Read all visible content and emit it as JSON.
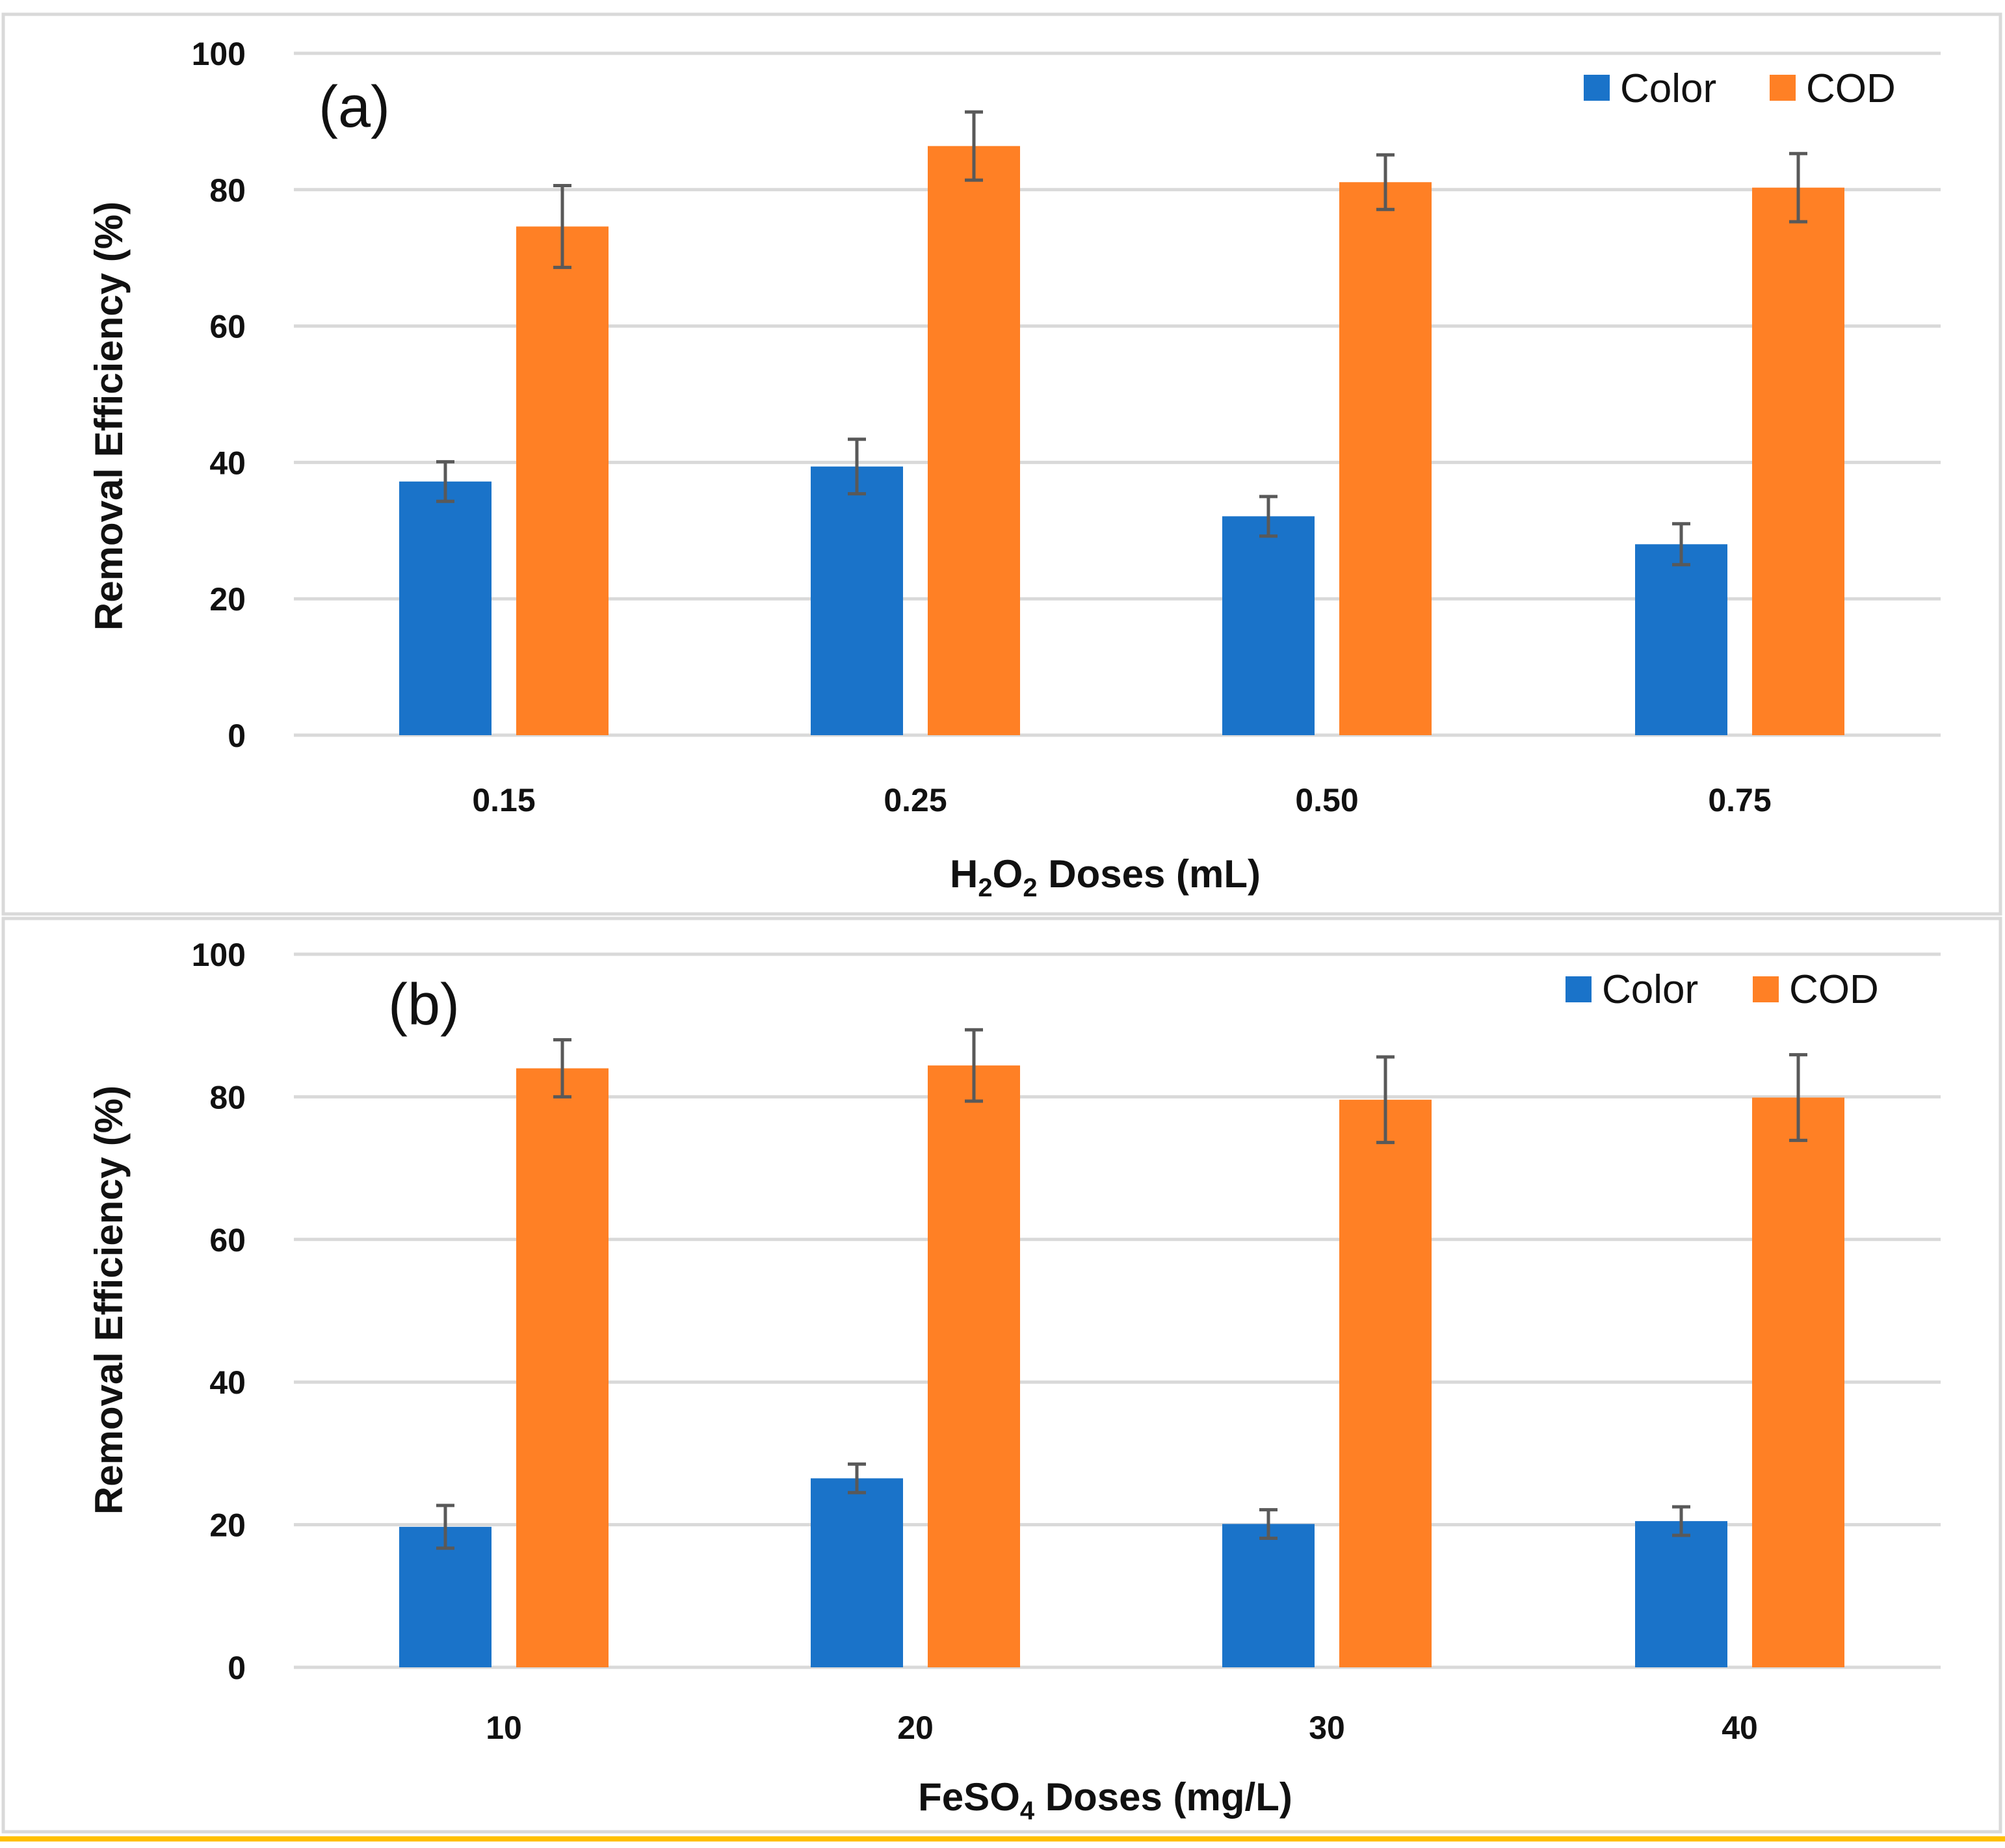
{
  "colors": {
    "color_series": "#1a73c9",
    "cod_series": "#ff8025",
    "gridline": "#d9d9d9",
    "errorbar": "#595959",
    "frame": "#d9d9d9",
    "bottom_rule": "#ffc000"
  },
  "chart_data": [
    {
      "type": "bar",
      "panel_label": "(a)",
      "title": "",
      "xlabel": {
        "prefix": "H",
        "sub1": "2",
        "mid": "O",
        "sub2": "2",
        "suffix": " Doses (mL)"
      },
      "ylabel": "Removal Efficiency (%)",
      "ylim": [
        0,
        100
      ],
      "yticks": [
        "0",
        "20",
        "40",
        "60",
        "80",
        "100"
      ],
      "grid": true,
      "legend_position": "top-right",
      "categories": [
        "0.15",
        "0.25",
        "0.50",
        "0.75"
      ],
      "series": [
        {
          "name": "Color",
          "values": [
            37.2,
            39.4,
            32.1,
            28.0
          ],
          "errors": [
            2.9,
            4.0,
            2.9,
            3.0
          ]
        },
        {
          "name": "COD",
          "values": [
            74.6,
            86.4,
            81.1,
            80.3
          ],
          "errors": [
            6.0,
            5.0,
            4.0,
            5.0
          ]
        }
      ]
    },
    {
      "type": "bar",
      "panel_label": "(b)",
      "title": "",
      "xlabel": {
        "prefix": "FeSO",
        "sub1": "4",
        "mid": "",
        "sub2": "",
        "suffix": " Doses (mg/L)"
      },
      "ylabel": "Removal Efficiency (%)",
      "ylim": [
        0,
        100
      ],
      "yticks": [
        "0",
        "20",
        "40",
        "60",
        "80",
        "100"
      ],
      "grid": true,
      "legend_position": "top-right",
      "categories": [
        "10",
        "20",
        "30",
        "40"
      ],
      "series": [
        {
          "name": "Color",
          "values": [
            19.7,
            26.5,
            20.1,
            20.5
          ],
          "errors": [
            3.0,
            2.0,
            2.0,
            2.0
          ]
        },
        {
          "name": "COD",
          "values": [
            84.0,
            84.4,
            79.6,
            79.9
          ],
          "errors": [
            4.0,
            5.0,
            6.0,
            6.0
          ]
        }
      ]
    }
  ]
}
